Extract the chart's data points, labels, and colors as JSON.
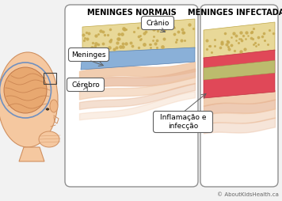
{
  "bg_color": "#f2f2f2",
  "title_left": "MENINGES NORMAIS",
  "title_right": "MENINGES INFECTADAS",
  "label_cranio": "Crânio",
  "label_meninges": "Meninges",
  "label_cerebro": "Cérebro",
  "label_inflam": "Inflamação e\ninfecção",
  "copyright": "© AboutKidsHealth.ca",
  "skull_color": "#e8d898",
  "skull_dot_color": "#c8aa50",
  "skull_edge_color": "#c0a848",
  "men_normal_color": "#8ab0d8",
  "men_normal_edge": "#5880b0",
  "men_top_color": "#b8c870",
  "men_red_color": "#e04858",
  "men_red_edge": "#c03040",
  "skin_color1": "#f0c8a8",
  "skin_color2": "#e8b898",
  "skin_color3": "#dda888",
  "brain_fill": "#e8a870",
  "brain_edge": "#c07848",
  "brain_fold": "#c07848",
  "head_fill": "#f5c8a0",
  "head_edge": "#d09060",
  "men_line_color": "#7090c0",
  "box_bg": "#ffffff",
  "box_edge": "#909090",
  "callout_bg": "#ffffff",
  "callout_edge": "#606060"
}
